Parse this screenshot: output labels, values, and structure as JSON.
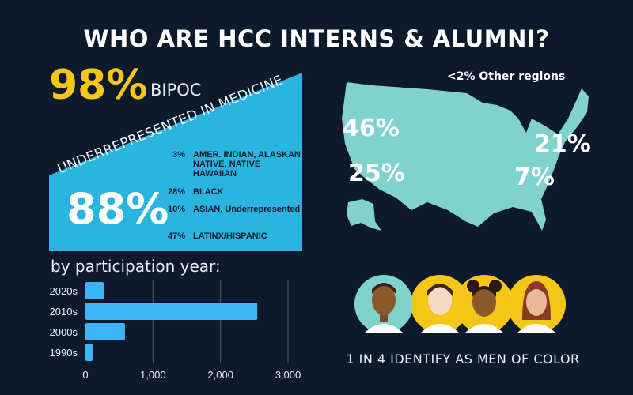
{
  "title": "WHO ARE HCC INTERNS & ALUMNI?",
  "bipoc": {
    "value": "98%",
    "label": "BIPOC"
  },
  "urim": {
    "label": "UNDERREPRESENTED IN MEDICINE",
    "value": "88%",
    "breakdown": [
      {
        "pct": "3%",
        "label": "AMER. INDIAN, ALASKAN NATIVE, NATIVE HAWAIIAN"
      },
      {
        "pct": "28%",
        "label": "BLACK"
      },
      {
        "pct": "10%",
        "label": "ASIAN, Underrepresented"
      },
      {
        "pct": "47%",
        "label": "LATINX/HISPANIC"
      }
    ]
  },
  "participation_title": "by participation year:",
  "chart_data": {
    "type": "bar",
    "orientation": "horizontal",
    "categories": [
      "2020s",
      "2010s",
      "2000s",
      "1990s"
    ],
    "values": [
      270,
      2545,
      585,
      105
    ],
    "xlim": [
      0,
      3000
    ],
    "xticks": [
      "0",
      "1,000",
      "2,000",
      "3,000"
    ],
    "grid": true,
    "bar_color": "#3db4f5"
  },
  "map": {
    "other": "<2% Other regions",
    "regions": [
      "46%",
      "25%",
      "21%",
      "7%"
    ],
    "color": "#7fd3cc"
  },
  "men_of_color": "1 IN 4 IDENTIFY AS MEN OF COLOR",
  "colors": {
    "background": "#0c1a2c",
    "accent_yellow": "#f5c518",
    "panel_blue": "#29b5e0"
  }
}
